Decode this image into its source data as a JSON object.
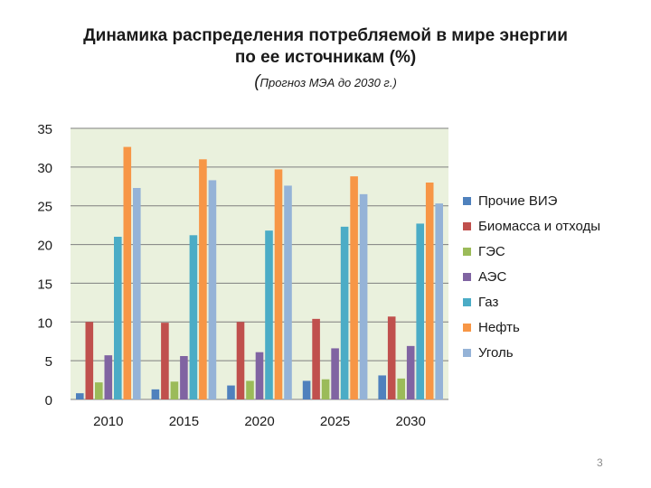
{
  "slide": {
    "title_line1": "Динамика распределения потребляемой в мире энергии",
    "title_line2": "по ее источникам (%)",
    "subtitle_paren": "(",
    "subtitle": "Прогноз  МЭА до 2030 г.)",
    "page_number": "3"
  },
  "colors": {
    "plot_bg": "#eaf1dd",
    "gridline": "#7f7f7f",
    "axis_text": "#1a1a1a"
  },
  "chart_data": {
    "type": "bar",
    "title": "",
    "xlabel": "",
    "ylabel": "",
    "ylim": [
      0,
      35
    ],
    "yticks": [
      0,
      5,
      10,
      15,
      20,
      25,
      30,
      35
    ],
    "grid": true,
    "legend": "right",
    "categories": [
      "2010",
      "2015",
      "2020",
      "2025",
      "2030"
    ],
    "series": [
      {
        "name": "Прочие ВИЭ",
        "color": "#4f81bd",
        "values": [
          0.8,
          1.3,
          1.8,
          2.4,
          3.1
        ]
      },
      {
        "name": "Биомасса и отходы",
        "color": "#c0504d",
        "values": [
          10.0,
          9.9,
          10.0,
          10.4,
          10.7
        ]
      },
      {
        "name": "ГЭС",
        "color": "#9bbb59",
        "values": [
          2.2,
          2.3,
          2.4,
          2.6,
          2.7
        ]
      },
      {
        "name": "АЭС",
        "color": "#8064a2",
        "values": [
          5.7,
          5.6,
          6.1,
          6.6,
          6.9
        ]
      },
      {
        "name": "Газ",
        "color": "#4bacc6",
        "values": [
          21.0,
          21.2,
          21.8,
          22.3,
          22.7
        ]
      },
      {
        "name": "Нефть",
        "color": "#f79646",
        "values": [
          32.6,
          31.0,
          29.7,
          28.8,
          28.0
        ]
      },
      {
        "name": "Уголь",
        "color": "#95b3d7",
        "values": [
          27.3,
          28.3,
          27.6,
          26.5,
          25.3
        ]
      }
    ]
  }
}
